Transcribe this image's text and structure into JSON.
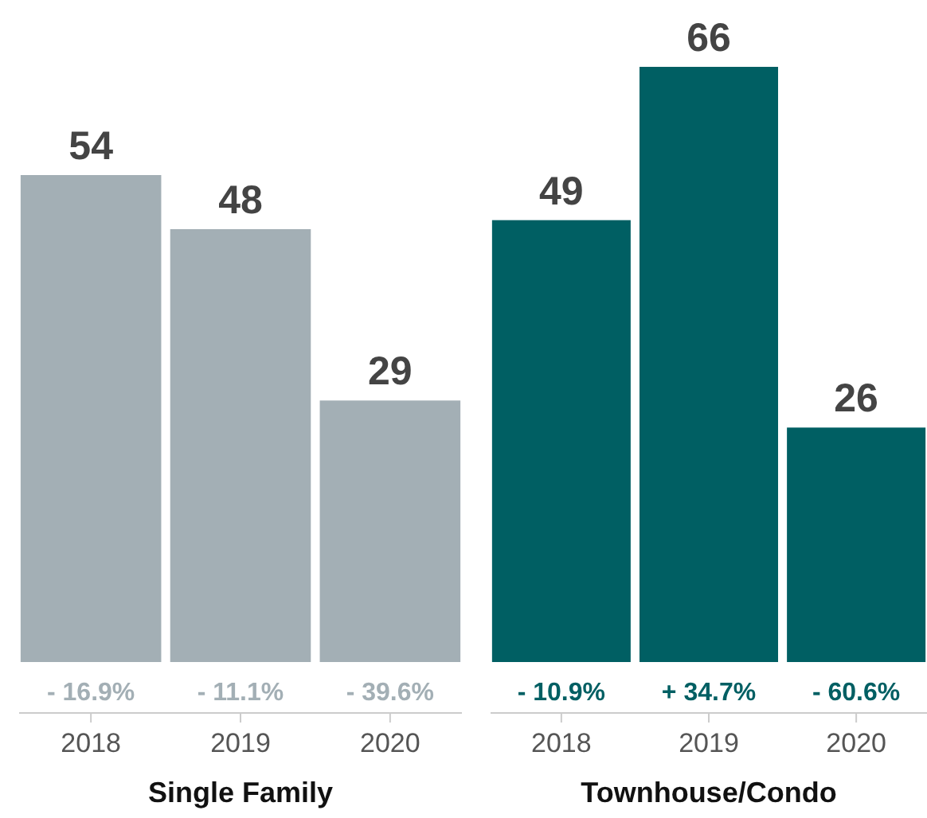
{
  "chart_data": [
    {
      "type": "bar",
      "categories": [
        "2018",
        "2019",
        "2020"
      ],
      "series": [
        {
          "color": "#a3afb5",
          "values": [
            54,
            48,
            29
          ]
        }
      ],
      "data_labels": true,
      "xlabel": "Single Family",
      "tick_labels": "x",
      "annotations": [
        {
          "text": "- 16.9%",
          "x": "2018",
          "y": 0
        },
        {
          "text": "- 11.1%",
          "x": "2019",
          "y": 0
        },
        {
          "text": "- 39.6%",
          "x": "2020",
          "y": 0
        }
      ]
    },
    {
      "type": "bar",
      "categories": [
        "2018",
        "2019",
        "2020"
      ],
      "series": [
        {
          "color": "#005f63",
          "values": [
            49,
            66,
            26
          ]
        }
      ],
      "data_labels": true,
      "xlabel": "Townhouse/Condo",
      "tick_labels": "x",
      "annotations": [
        {
          "text": "- 10.9%",
          "x": "2018",
          "y": 0
        },
        {
          "text": "+ 34.7%",
          "x": "2019",
          "y": 0
        },
        {
          "text": "- 60.6%",
          "x": "2020",
          "y": 0
        }
      ]
    }
  ]
}
